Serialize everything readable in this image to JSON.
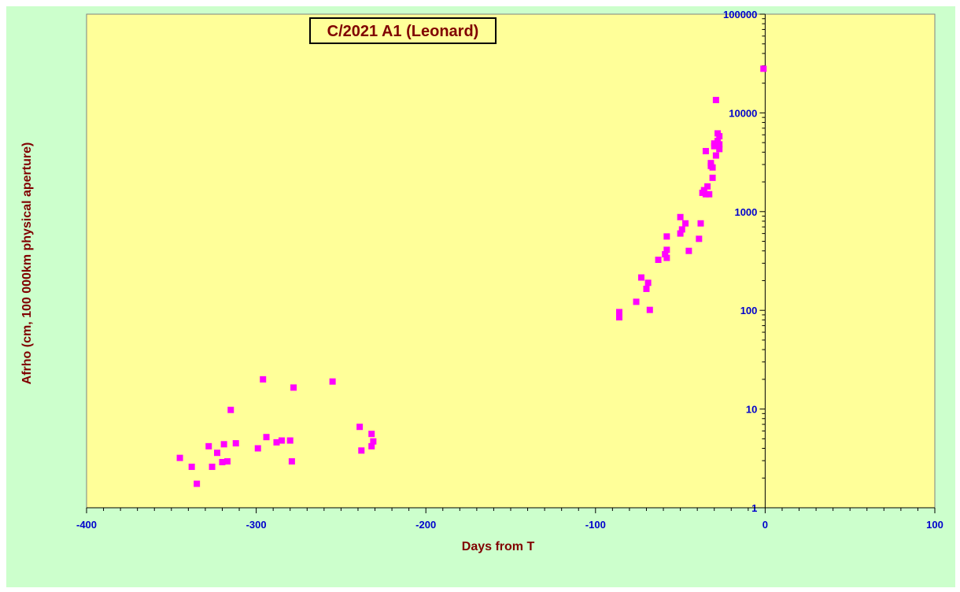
{
  "chart_data": {
    "type": "scatter",
    "title": "C/2021 A1 (Leonard)",
    "xlabel": "Days from T",
    "ylabel": "Afrho (cm, 100 000km physical aperture)",
    "xlim": [
      -400,
      100
    ],
    "ylim": [
      1,
      100000
    ],
    "y_scale": "log",
    "x_ticks": [
      "-400",
      "-300",
      "-200",
      "-100",
      "0",
      "100"
    ],
    "y_ticks": [
      "1",
      "10",
      "100",
      "1000",
      "10000",
      "100000"
    ],
    "grid": false,
    "legend": "none",
    "colors": {
      "plot_background": "#ffff99",
      "outer_background": "#ccffcc",
      "marker": "#ff00ff",
      "tick_labels": "#0000cc",
      "axis_titles": "#800000",
      "title_text": "#800000",
      "title_box": "#ffff99"
    },
    "series": [
      {
        "marker": "square",
        "points": [
          [
            -345,
            3.2
          ],
          [
            -338,
            2.6
          ],
          [
            -335,
            1.75
          ],
          [
            -328,
            4.2
          ],
          [
            -326,
            2.6
          ],
          [
            -323,
            3.6
          ],
          [
            -320,
            2.9
          ],
          [
            -319,
            4.4
          ],
          [
            -317,
            2.95
          ],
          [
            -315,
            9.8
          ],
          [
            -312,
            4.5
          ],
          [
            -299,
            4.0
          ],
          [
            -296,
            20
          ],
          [
            -294,
            5.2
          ],
          [
            -288,
            4.6
          ],
          [
            -285,
            4.8
          ],
          [
            -280,
            4.8
          ],
          [
            -279,
            2.95
          ],
          [
            -278,
            16.5
          ],
          [
            -255,
            19
          ],
          [
            -239,
            6.6
          ],
          [
            -238,
            3.8
          ],
          [
            -232,
            4.2
          ],
          [
            -232,
            5.6
          ],
          [
            -231,
            4.7
          ],
          [
            -86,
            85
          ],
          [
            -86,
            96
          ],
          [
            -76,
            122
          ],
          [
            -73,
            215
          ],
          [
            -70,
            165
          ],
          [
            -69,
            190
          ],
          [
            -68,
            101
          ],
          [
            -63,
            325
          ],
          [
            -59,
            370
          ],
          [
            -58,
            410
          ],
          [
            -58,
            340
          ],
          [
            -58,
            560
          ],
          [
            -50,
            880
          ],
          [
            -50,
            600
          ],
          [
            -49,
            660
          ],
          [
            -47,
            760
          ],
          [
            -45,
            400
          ],
          [
            -39,
            530
          ],
          [
            -38,
            760
          ],
          [
            -37,
            1550
          ],
          [
            -36,
            1650
          ],
          [
            -35,
            1500
          ],
          [
            -35,
            4100
          ],
          [
            -34,
            1800
          ],
          [
            -33,
            1500
          ],
          [
            -32,
            2900
          ],
          [
            -32,
            3100
          ],
          [
            -31,
            2200
          ],
          [
            -31,
            2800
          ],
          [
            -30,
            4600
          ],
          [
            -30,
            4900
          ],
          [
            -29,
            3700
          ],
          [
            -29,
            13500
          ],
          [
            -28,
            5200
          ],
          [
            -28,
            6200
          ],
          [
            -27,
            4300
          ],
          [
            -27,
            4800
          ],
          [
            -27,
            5800
          ],
          [
            -1,
            28000
          ]
        ]
      }
    ]
  }
}
